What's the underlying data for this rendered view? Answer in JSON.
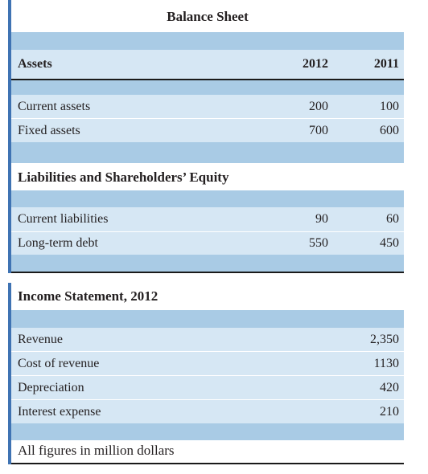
{
  "balance_sheet": {
    "title": "Balance Sheet",
    "assets_heading": "Assets",
    "years": [
      "2012",
      "2011"
    ],
    "assets_rows": [
      {
        "label": "Current assets",
        "v2012": "200",
        "v2011": "100"
      },
      {
        "label": "Fixed assets",
        "v2012": "700",
        "v2011": "600"
      }
    ],
    "liabilities_heading": "Liabilities and Shareholders’ Equity",
    "liabilities_rows": [
      {
        "label": "Current liabilities",
        "v2012": "90",
        "v2011": "60"
      },
      {
        "label": "Long-term debt",
        "v2012": "550",
        "v2011": "450"
      }
    ]
  },
  "income_statement": {
    "title": "Income Statement, 2012",
    "rows": [
      {
        "label": "Revenue",
        "value": "2,350"
      },
      {
        "label": "Cost of revenue",
        "value": "1130"
      },
      {
        "label": "Depreciation",
        "value": "420"
      },
      {
        "label": "Interest expense",
        "value": "210"
      }
    ],
    "footnote": "All figures in million dollars"
  },
  "colors": {
    "accent_bar": "#3f73b3",
    "band_blue": "#a9cbe5",
    "band_light": "#d6e7f4"
  }
}
